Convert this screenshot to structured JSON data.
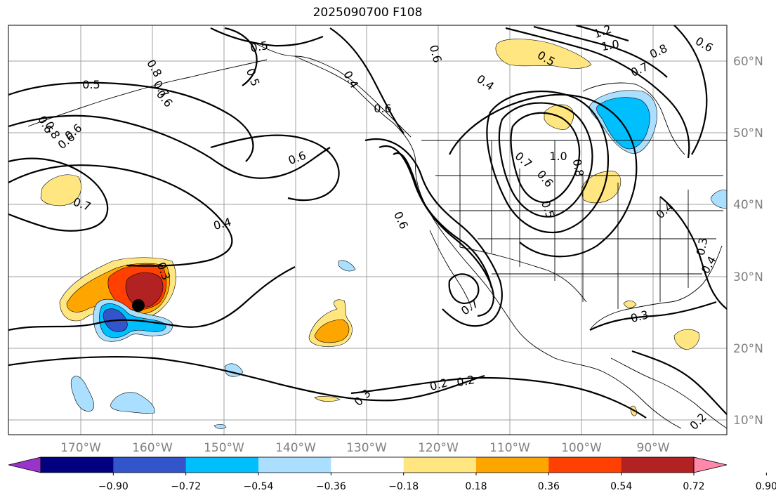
{
  "title": "2025090700 F108",
  "map": {
    "lat_ticks": [
      "60°N",
      "50°N",
      "40°N",
      "30°N",
      "20°N",
      "10°N"
    ],
    "lon_ticks": [
      "170°W",
      "160°W",
      "150°W",
      "140°W",
      "130°W",
      "120°W",
      "110°W",
      "100°W",
      "90°W"
    ],
    "contour_labels": [
      "1.2",
      "1.0",
      "0.8",
      "0.7",
      "0.6",
      "0.5",
      "0.4",
      "0.8",
      "0.7",
      "0.6",
      "0.5",
      "0.5",
      "0.4",
      "0.6",
      "0.6",
      "0.5",
      "0.7",
      "0.6",
      "0.6",
      "0.6",
      "0.8",
      "0.6",
      "0.4",
      "0.7",
      "0.4",
      "0.3",
      "0.6",
      "0.7",
      "1.0",
      "0.6",
      "0.5",
      "0.8",
      "0.3",
      "0.2",
      "0.2",
      "0.3",
      "0.3",
      "0.2",
      "0.4"
    ],
    "colors": {
      "land_outline": "#000000",
      "grid": "#a0a0a0",
      "contour": "#000000"
    }
  },
  "colorbar": {
    "labels": [
      "−0.90",
      "−0.72",
      "−0.54",
      "−0.36",
      "−0.18",
      "0.18",
      "0.36",
      "0.54",
      "0.72",
      "0.90"
    ],
    "colors": [
      "#9933cc",
      "#000080",
      "#3355cc",
      "#00bfff",
      "#aadfff",
      "#ffffff",
      "#ffe680",
      "#ffa500",
      "#ff4000",
      "#b22222",
      "#ff88aa"
    ]
  }
}
